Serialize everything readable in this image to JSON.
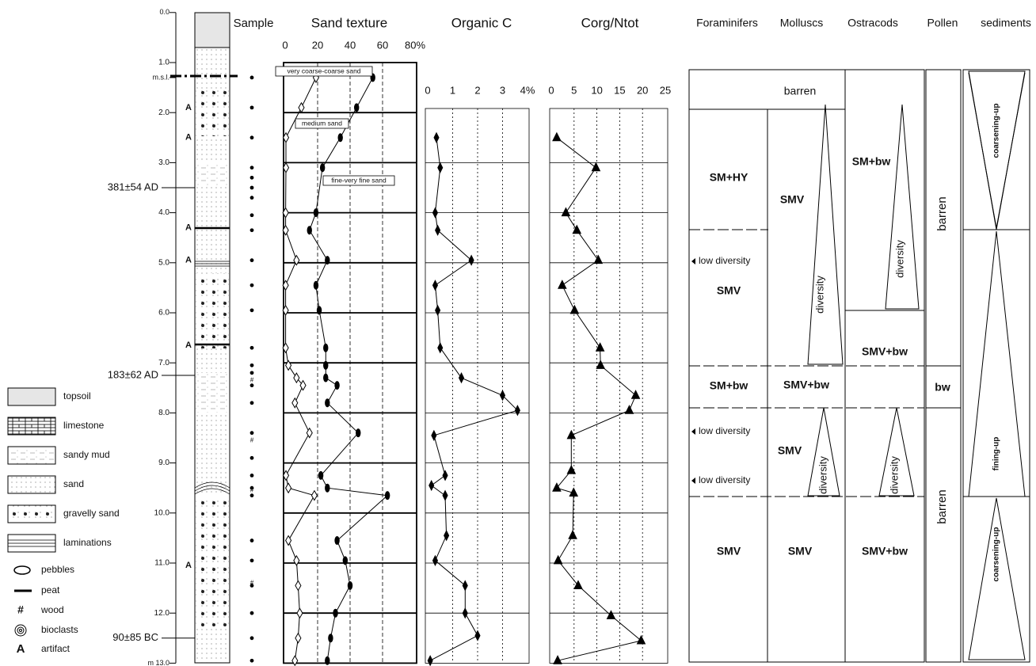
{
  "depth_axis": {
    "ticks": [
      {
        "value": 0,
        "label": "0.0"
      },
      {
        "value": 1,
        "label": "1.0"
      },
      {
        "value": 1.3,
        "label": "m.s.l."
      },
      {
        "value": 2,
        "label": "2.0"
      },
      {
        "value": 3,
        "label": "3.0"
      },
      {
        "value": 4,
        "label": "4.0"
      },
      {
        "value": 5,
        "label": "5.0"
      },
      {
        "value": 6,
        "label": "6.0"
      },
      {
        "value": 7,
        "label": "7.0"
      },
      {
        "value": 8,
        "label": "8.0"
      },
      {
        "value": 9,
        "label": "9.0"
      },
      {
        "value": 10,
        "label": "10.0"
      },
      {
        "value": 11,
        "label": "11.0"
      },
      {
        "value": 12,
        "label": "12.0"
      },
      {
        "value": 13,
        "label": "m 13.0"
      }
    ],
    "lim": [
      0,
      13
    ]
  },
  "dates": [
    {
      "label": "381±54 AD",
      "depth": 3.5
    },
    {
      "label": "183±62 AD",
      "depth": 7.25
    },
    {
      "label": "90±85 BC",
      "depth": 12.5
    }
  ],
  "samples": {
    "title": "Sample",
    "depths": [
      1.3,
      1.9,
      2.5,
      3.1,
      3.3,
      3.5,
      3.7,
      4.05,
      4.35,
      4.95,
      5.45,
      5.95,
      6.7,
      7.05,
      7.2,
      7.45,
      7.8,
      8.4,
      8.9,
      9.25,
      9.5,
      9.65,
      10.55,
      10.95,
      11.45,
      12.0,
      12.5,
      12.95
    ]
  },
  "wood_marks": [
    "#",
    "#",
    "#",
    "#"
  ],
  "artifacts": [
    "A",
    "A",
    "A",
    "A",
    "A",
    "A"
  ],
  "chart_data": [
    {
      "type": "line",
      "title": "Sand texture",
      "xlim": [
        0,
        80
      ],
      "xticks": [
        0,
        20,
        40,
        60,
        {
          "value": 80,
          "label": "80%"
        }
      ],
      "ylim": [
        0,
        13
      ],
      "grid": true,
      "y": [
        1.3,
        1.9,
        2.5,
        3.1,
        4.0,
        4.35,
        4.95,
        5.45,
        5.95,
        6.7,
        7.05,
        7.3,
        7.45,
        7.8,
        8.4,
        9.25,
        9.5,
        9.65,
        10.55,
        10.95,
        11.45,
        12.0,
        12.5,
        12.95
      ],
      "annotation": "medium sand",
      "series": [
        {
          "name": "very coarse-coarse sand",
          "color": "#000000",
          "marker": "open-diamond",
          "values": [
            19,
            10,
            0.5,
            0.5,
            0.3,
            0.3,
            7,
            0.3,
            0.3,
            0.3,
            2,
            7,
            11,
            6,
            15,
            0.5,
            2,
            18,
            2,
            7,
            8,
            9,
            8,
            6
          ]
        },
        {
          "name": "fine-very fine sand",
          "color": "#000000",
          "marker": "filled-ellipse",
          "values": [
            54,
            44,
            34,
            23,
            19,
            15,
            26,
            19,
            21,
            25,
            25,
            25,
            32,
            26,
            45,
            22,
            26,
            63,
            32,
            37,
            40,
            31,
            28,
            26
          ]
        }
      ]
    },
    {
      "type": "line",
      "title": "Organic C",
      "xlim": [
        0,
        4
      ],
      "xticks": [
        0,
        1,
        2,
        3,
        {
          "value": 4,
          "label": "4%"
        }
      ],
      "ylim": [
        0,
        13
      ],
      "grid": true,
      "y": [
        2.5,
        3.1,
        4.0,
        4.35,
        4.95,
        5.45,
        5.95,
        6.7,
        7.3,
        7.65,
        7.95,
        8.45,
        9.25,
        9.45,
        9.65,
        10.45,
        10.95,
        11.45,
        12.0,
        12.45,
        12.95
      ],
      "series": [
        {
          "color": "#000000",
          "marker": "diamond",
          "values": [
            0.35,
            0.5,
            0.3,
            0.4,
            1.75,
            0.3,
            0.4,
            0.5,
            1.35,
            3.0,
            3.6,
            0.25,
            0.7,
            0.15,
            0.7,
            0.75,
            0.3,
            1.5,
            1.5,
            2.0,
            0.1
          ]
        }
      ]
    },
    {
      "type": "line",
      "title": "Corg/Ntot",
      "xlim": [
        0,
        25
      ],
      "xticks": [
        0,
        5,
        10,
        15,
        20,
        25
      ],
      "ylim": [
        0,
        13
      ],
      "grid": true,
      "y": [
        2.5,
        3.1,
        4.0,
        4.35,
        4.95,
        5.45,
        5.95,
        6.7,
        7.05,
        7.65,
        7.95,
        8.45,
        9.15,
        9.5,
        9.6,
        10.45,
        10.95,
        11.45,
        12.05,
        12.55,
        12.95
      ],
      "series": [
        {
          "color": "#000000",
          "marker": "triangle",
          "values": [
            1.2,
            9.8,
            3.2,
            5.6,
            10.3,
            2.4,
            5.1,
            10.7,
            10.8,
            18.5,
            17.1,
            4.4,
            4.4,
            1.2,
            4.9,
            4.7,
            1.5,
            5.9,
            13.1,
            19.7,
            1.4
          ]
        }
      ]
    }
  ],
  "zones": {
    "headers": [
      "Foraminifers",
      "Molluscs",
      "Ostracods",
      "Pollen",
      "sediments"
    ],
    "labels": [
      "barren",
      "SM+HY",
      "low diversity",
      "SMV",
      "SM+bw",
      "low diversity",
      "low diversity",
      "SMV",
      "SMV",
      "diversity",
      "SMV+bw",
      "SMV",
      "diversity",
      "SMV",
      "SM+bw",
      "diversity",
      "SMV+bw",
      "diversity",
      "SMV+bw",
      "barren",
      "bw",
      "barren",
      "coarsening-up",
      "fining-up",
      "coarsening-up"
    ]
  },
  "legend": {
    "items": [
      "topsoil",
      "limestone",
      "sandy mud",
      "sand",
      "gravelly sand",
      "laminations",
      "pebbles",
      "peat",
      "wood",
      "bioclasts",
      "artifact"
    ],
    "wood_symbol": "#",
    "artifact_symbol": "A"
  }
}
